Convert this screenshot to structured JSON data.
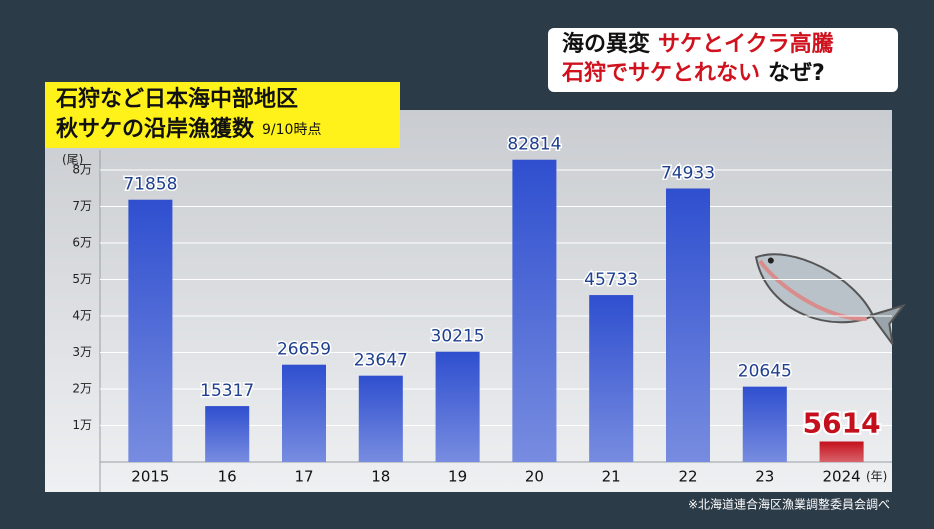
{
  "headline": {
    "line1": [
      "海の異変",
      "サケとイクラ高騰"
    ],
    "line2": [
      "石狩でサケとれない",
      "なぜ?"
    ]
  },
  "chart_data": {
    "type": "bar",
    "title": [
      "石狩など日本海中部地区",
      "秋サケの沿岸漁獲数"
    ],
    "subtitle": "9/10時点",
    "ylabel": "(尾)",
    "xlabel": "(年)",
    "categories": [
      "2015",
      "16",
      "17",
      "18",
      "19",
      "20",
      "21",
      "22",
      "23",
      "2024"
    ],
    "values": [
      71858,
      15317,
      26659,
      23647,
      30215,
      82814,
      45733,
      74933,
      20645,
      5614
    ],
    "colors": [
      "#2f4fcf",
      "#2f4fcf",
      "#2f4fcf",
      "#2f4fcf",
      "#2f4fcf",
      "#2f4fcf",
      "#2f4fcf",
      "#2f4fcf",
      "#2f4fcf",
      "#c4101c"
    ],
    "ylim": [
      0,
      85000
    ],
    "yticks": [
      {
        "value": 10000,
        "label": "1万"
      },
      {
        "value": 20000,
        "label": "2万"
      },
      {
        "value": 30000,
        "label": "3万"
      },
      {
        "value": 40000,
        "label": "4万"
      },
      {
        "value": 50000,
        "label": "5万"
      },
      {
        "value": 60000,
        "label": "6万"
      },
      {
        "value": 70000,
        "label": "7万"
      },
      {
        "value": 80000,
        "label": "8万"
      }
    ],
    "grid": true,
    "source": "※北海道連合海区漁業調整委員会調べ"
  }
}
